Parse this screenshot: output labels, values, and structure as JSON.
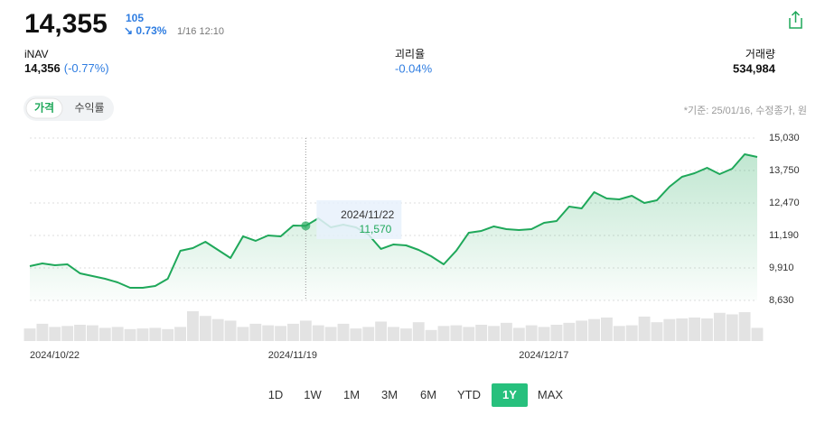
{
  "header": {
    "price": "14,355",
    "change": "105",
    "change_pct": "↘ 0.73%",
    "time": "1/16 12:10",
    "inav_label": "iNAV",
    "inav_value": "14,356",
    "inav_pct": "(-0.77%)",
    "gap_label": "괴리율",
    "gap_value": "-0.04%",
    "volume_label": "거래량",
    "volume_value": "534,984"
  },
  "tabs": [
    "가격",
    "수익률"
  ],
  "active_tab": 0,
  "basis_note": "*기준: 25/01/16, 수정종가, 원",
  "ranges": [
    "1D",
    "1W",
    "1M",
    "3M",
    "6M",
    "YTD",
    "1Y",
    "MAX"
  ],
  "active_range": 6,
  "chart_data": {
    "type": "line",
    "color": "#1fa85a",
    "volume_color": "#e3e3e3",
    "grid": true,
    "categories": [
      "2024/10/22",
      null,
      null,
      null,
      null,
      null,
      null,
      null,
      null,
      null,
      null,
      null,
      null,
      null,
      null,
      null,
      null,
      null,
      null,
      "2024/11/19",
      null,
      null,
      null,
      null,
      null,
      null,
      null,
      null,
      null,
      null,
      null,
      null,
      null,
      null,
      null,
      null,
      null,
      null,
      null,
      "2024/12/17",
      null,
      null,
      null,
      null,
      null,
      null,
      null,
      null,
      null,
      null,
      null,
      null,
      null,
      null,
      null,
      null,
      null,
      null,
      null
    ],
    "values": [
      9981,
      10088,
      10017,
      10052,
      9697,
      9590,
      9483,
      9341,
      9128,
      9128,
      9199,
      9483,
      10586,
      10692,
      10941,
      10621,
      10301,
      11155,
      10977,
      11190,
      11155,
      11581,
      11570,
      11866,
      11510,
      11617,
      11510,
      11226,
      10657,
      10835,
      10799,
      10621,
      10372,
      10052,
      10586,
      11297,
      11368,
      11546,
      11439,
      11404,
      11439,
      11688,
      11759,
      12328,
      12257,
      12897,
      12648,
      12612,
      12755,
      12470,
      12577,
      13110,
      13501,
      13643,
      13857,
      13608,
      13821,
      14390,
      14284
    ],
    "volume": [
      40,
      55,
      45,
      48,
      52,
      50,
      42,
      45,
      38,
      40,
      42,
      38,
      45,
      95,
      80,
      70,
      65,
      45,
      55,
      50,
      48,
      55,
      65,
      50,
      45,
      55,
      40,
      45,
      62,
      45,
      40,
      60,
      35,
      48,
      50,
      45,
      52,
      48,
      58,
      42,
      50,
      45,
      52,
      58,
      65,
      70,
      75,
      48,
      50,
      78,
      60,
      70,
      72,
      75,
      72,
      90,
      85,
      92,
      42
    ],
    "ylim": [
      8630,
      15030
    ],
    "yticks": [
      {
        "value": 15030,
        "label": "15,030"
      },
      {
        "value": 13750,
        "label": "13,750"
      },
      {
        "value": 12470,
        "label": "12,470"
      },
      {
        "value": 11190,
        "label": "11,190"
      },
      {
        "value": 9910,
        "label": "9,910"
      },
      {
        "value": 8630,
        "label": "8,630"
      }
    ],
    "tooltip": {
      "index": 22,
      "date": "2024/11/22",
      "value": "11,570"
    }
  }
}
